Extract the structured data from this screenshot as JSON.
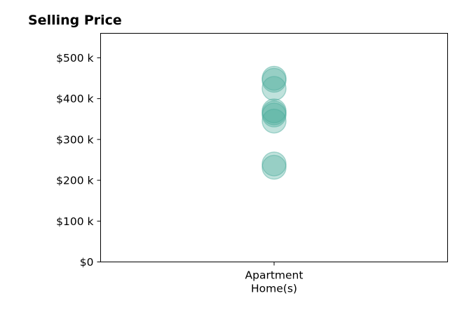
{
  "chart_data": {
    "type": "scatter",
    "title": "Selling Price",
    "xlabel": "",
    "ylabel": "",
    "categories": [
      [
        "Apartment",
        "Home(s)"
      ]
    ],
    "ylim": [
      0,
      560000
    ],
    "yticks": [
      0,
      100000,
      200000,
      300000,
      400000,
      500000
    ],
    "ytick_labels": [
      "$0",
      "$100 k",
      "$200 k",
      "$300 k",
      "$400 k",
      "$500 k"
    ],
    "series": [
      {
        "category_index": 0,
        "values": [
          450000,
          445000,
          425000,
          370000,
          365000,
          360000,
          345000,
          240000,
          232000
        ]
      }
    ],
    "grid": false,
    "legend": "none",
    "colors": {
      "bubble": "#4aab9b"
    }
  }
}
